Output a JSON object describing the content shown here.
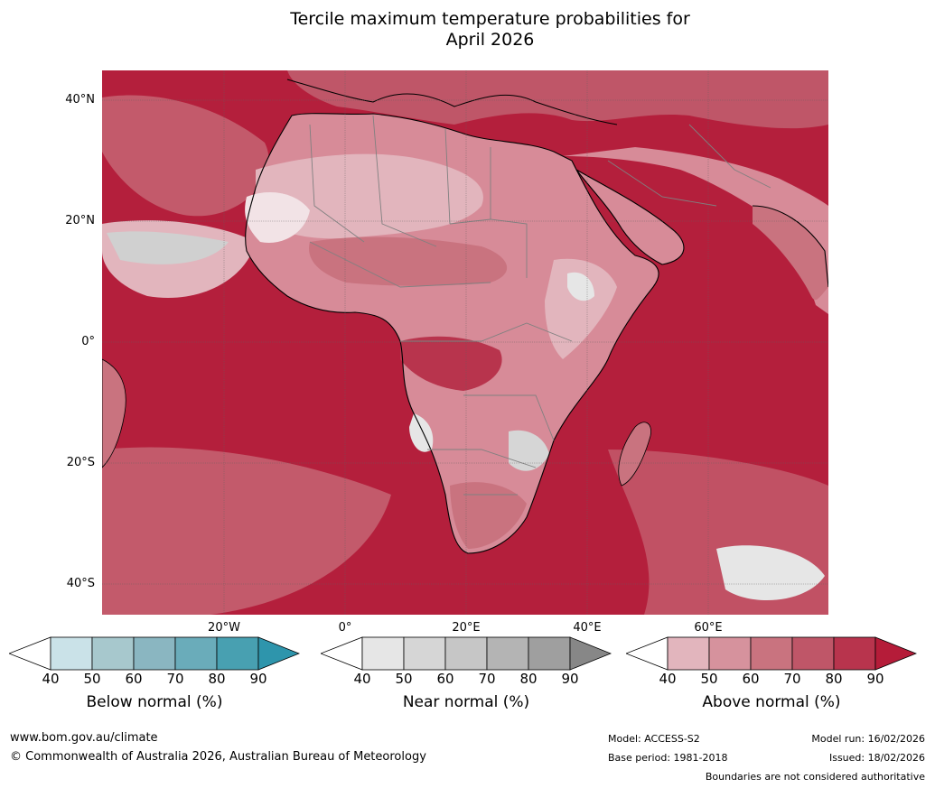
{
  "title": {
    "line1": "Tercile maximum temperature probabilities for",
    "line2": "April 2026"
  },
  "map": {
    "lat_labels": [
      "40°N",
      "20°N",
      "0°",
      "20°S",
      "40°S"
    ],
    "lon_labels": [
      "20°W",
      "0°",
      "20°E",
      "40°E",
      "60°E"
    ],
    "ocean_color": "#b41f3c",
    "land_color": "#d78b98",
    "coast_color": "#000000",
    "border_color": "#808080",
    "grid_color": "#606060"
  },
  "colorbars": [
    {
      "name": "below-normal",
      "title": "Below normal (%)",
      "ticks": [
        "40",
        "50",
        "60",
        "70",
        "80",
        "90"
      ],
      "colors": [
        "#ffffff",
        "#cae2e8",
        "#a7c8cd",
        "#8ab6c1",
        "#6aacba",
        "#48a0b1",
        "#2e95ac"
      ]
    },
    {
      "name": "near-normal",
      "title": "Near normal (%)",
      "ticks": [
        "40",
        "50",
        "60",
        "70",
        "80",
        "90"
      ],
      "colors": [
        "#ffffff",
        "#e6e6e6",
        "#d6d6d6",
        "#c6c6c6",
        "#b4b4b4",
        "#9f9f9f",
        "#878787"
      ]
    },
    {
      "name": "above-normal",
      "title": "Above normal (%)",
      "ticks": [
        "40",
        "50",
        "60",
        "70",
        "80",
        "90"
      ],
      "colors": [
        "#ffffff",
        "#e2b5bd",
        "#d6929d",
        "#c9737f",
        "#bf5668",
        "#b8344d",
        "#b51c39"
      ]
    }
  ],
  "footer": {
    "website": "www.bom.gov.au/climate",
    "copyright": "© Commonwealth of Australia 2026, Australian Bureau of Meteorology",
    "model": "Model: ACCESS-S2",
    "base_period": "Base period: 1981-2018",
    "model_run": "Model run: 16/02/2026",
    "issued": "Issued: 18/02/2026",
    "disclaimer": "Boundaries are not considered authoritative"
  }
}
